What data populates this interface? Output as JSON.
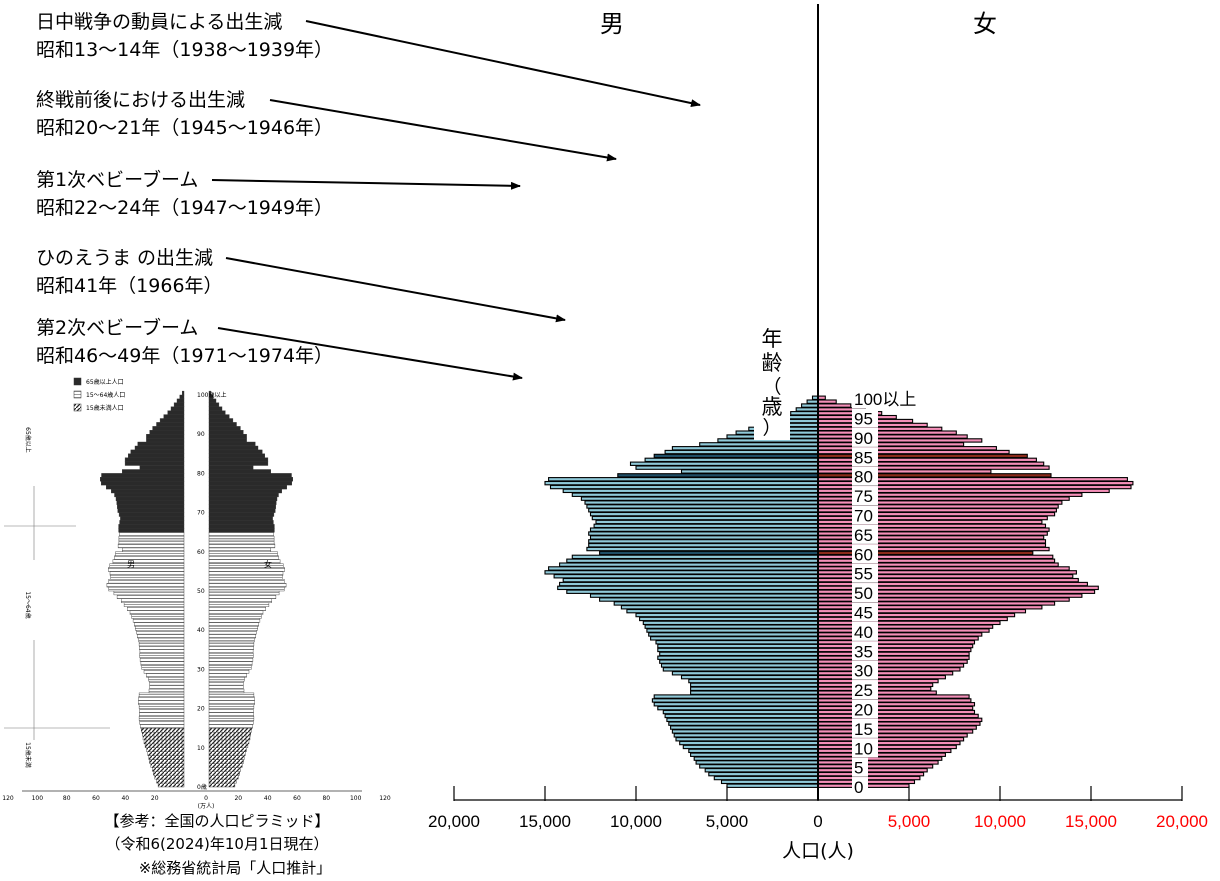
{
  "chart_data": [
    {
      "type": "bar",
      "orientation": "horizontal-population-pyramid",
      "series_labels": {
        "male": "男",
        "female": "女"
      },
      "axis_title_vertical": [
        "年",
        "齢",
        "（",
        "歳",
        "）"
      ],
      "xlabel": "人口(人)",
      "x_ticks": [
        "20,000",
        "15,000",
        "10,000",
        "5,000",
        "0",
        "5,000",
        "10,000",
        "15,000",
        "20,000"
      ],
      "age_ticks": [
        "0",
        "5",
        "10",
        "15",
        "20",
        "25",
        "30",
        "35",
        "40",
        "45",
        "50",
        "55",
        "60",
        "65",
        "70",
        "75",
        "80",
        "85",
        "90",
        "95",
        "100以上"
      ],
      "colors": {
        "male": "#8fc9d8",
        "female": "#f48fb8",
        "male_dark": "#1f4e66",
        "female_dark": "#8b2a1a",
        "female_tick_labels": "#ff0000"
      },
      "xlim": [
        -20000,
        20000
      ],
      "highlighted_ages": [
        60,
        80,
        85
      ],
      "male": [
        5000,
        5300,
        5700,
        6000,
        6200,
        6500,
        6700,
        6800,
        7000,
        7100,
        7400,
        7600,
        7800,
        7900,
        8000,
        8100,
        8200,
        8300,
        8400,
        8500,
        8800,
        9000,
        9100,
        9000,
        7000,
        7000,
        7000,
        7100,
        7500,
        8000,
        8500,
        8600,
        8700,
        8800,
        8700,
        8800,
        8800,
        8900,
        9200,
        9300,
        9400,
        9500,
        9600,
        9800,
        10000,
        10500,
        10800,
        11200,
        12000,
        12500,
        13800,
        14300,
        14200,
        14000,
        14500,
        15000,
        14800,
        14200,
        13800,
        13500,
        12000,
        12700,
        12600,
        12600,
        12500,
        12600,
        12500,
        12300,
        12200,
        12400,
        12500,
        12600,
        12700,
        12800,
        13000,
        13500,
        14000,
        14700,
        15000,
        14800,
        11000,
        7500,
        10000,
        10300,
        9500,
        9000,
        8400,
        8000,
        6500,
        5500,
        5000,
        4500,
        3800,
        3200,
        2600,
        2000,
        1500,
        1200,
        900,
        600,
        300
      ],
      "female": [
        5000,
        5300,
        5600,
        5800,
        6000,
        6300,
        6600,
        6800,
        7000,
        7300,
        7600,
        7800,
        8000,
        8200,
        8500,
        8700,
        8900,
        9000,
        8800,
        8600,
        8500,
        8600,
        8400,
        8300,
        6500,
        6200,
        6300,
        6600,
        7000,
        7400,
        7800,
        8000,
        8200,
        8300,
        8300,
        8400,
        8500,
        8600,
        8800,
        9000,
        9400,
        9600,
        10000,
        10400,
        10800,
        11400,
        12300,
        13000,
        13800,
        14500,
        15200,
        15400,
        14800,
        14300,
        14000,
        14200,
        13800,
        13200,
        13000,
        12900,
        11800,
        12700,
        12500,
        12500,
        12400,
        12600,
        12700,
        12500,
        12300,
        12600,
        13000,
        13100,
        13200,
        13400,
        13800,
        14500,
        16000,
        17200,
        17300,
        17000,
        12800,
        9500,
        12700,
        12400,
        12000,
        11500,
        10500,
        9800,
        8000,
        9000,
        8200,
        7600,
        6800,
        6000,
        5200,
        4300,
        3500,
        2600,
        1800,
        1000,
        400
      ]
    },
    {
      "type": "bar",
      "orientation": "horizontal-population-pyramid",
      "legend": [
        "65歳以上人口",
        "15～64歳人口",
        "15歳未満人口"
      ],
      "series_labels": {
        "male": "男",
        "female": "女"
      },
      "age_ticks": [
        "0歳",
        "10",
        "20",
        "30",
        "40",
        "50",
        "60",
        "70",
        "80",
        "90",
        "100歳以上"
      ],
      "x_ticks": [
        "120",
        "100",
        "80",
        "60",
        "40",
        "20",
        "0",
        "20",
        "40",
        "60",
        "80",
        "100",
        "120"
      ],
      "x_unit": "(万人)",
      "group_labels": [
        "65歳以上",
        "15～64歳",
        "15歳未満"
      ]
    }
  ],
  "annotations": [
    {
      "line1": "日中戦争の動員による出生減",
      "line2": "昭和13～14年（1938～1939年）"
    },
    {
      "line1": "終戦前後における出生減",
      "line2": "昭和20～21年（1945～1946年）"
    },
    {
      "line1": "第1次ベビーブーム",
      "line2": "昭和22～24年（1947～1949年）"
    },
    {
      "line1": "ひのえうま の出生減",
      "line2": "昭和41年（1966年）"
    },
    {
      "line1": "第2次ベビーブーム",
      "line2": "昭和46～49年（1971～1974年）"
    }
  ],
  "source": {
    "line1": "【参考：全国の人口ピラミッド】",
    "line2": "（令和6(2024)年10月1日現在）",
    "line3": "※総務省統計局「人口推計」"
  }
}
